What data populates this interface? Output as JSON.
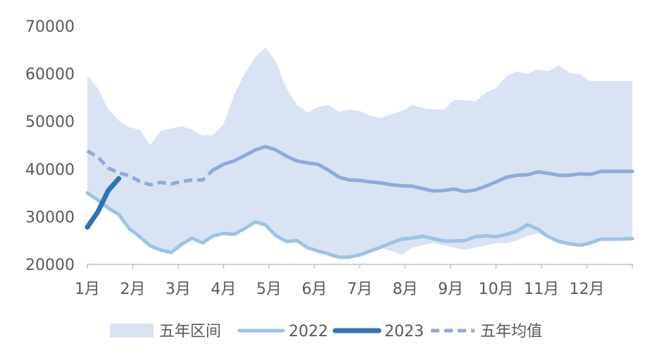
{
  "chart_data": {
    "type": "line",
    "title": "",
    "xlabel": "",
    "ylabel": "",
    "ylim": [
      20000,
      70000
    ],
    "yticks": [
      20000,
      30000,
      40000,
      50000,
      60000,
      70000
    ],
    "ytick_labels": [
      "20000",
      "30000",
      "40000",
      "50000",
      "60000",
      "70000"
    ],
    "month_labels": [
      "1月",
      "2月",
      "3月",
      "4月",
      "5月",
      "6月",
      "7月",
      "8月",
      "9月",
      "10月",
      "11月",
      "12月"
    ],
    "x_unit": "week",
    "x_max": 53,
    "legend_position": "bottom",
    "colors": {
      "band": "#dae3f3",
      "s2022": "#9dc3e6",
      "s2023": "#2e75b6",
      "avg": "#8faadc",
      "axis": "#bfbfbf",
      "text": "#595959"
    },
    "legend": [
      "五年区间",
      "2022",
      "2023",
      "五年均值"
    ],
    "series": [
      {
        "name": "五年区间",
        "kind": "band",
        "upper": [
          59500,
          57000,
          52500,
          50200,
          48800,
          48200,
          45000,
          48000,
          48500,
          49000,
          48300,
          47000,
          47200,
          49500,
          55500,
          60000,
          63500,
          65500,
          62500,
          57000,
          53500,
          51800,
          53000,
          53500,
          52000,
          52500,
          52200,
          51200,
          50700,
          51500,
          52200,
          53500,
          52800,
          52500,
          52500,
          54500,
          54500,
          54200,
          56000,
          57000,
          59500,
          60500,
          60000,
          61000,
          60500,
          61800,
          60200,
          59800,
          58500,
          58500,
          58500,
          58500,
          58500
        ],
        "lower": [
          35000,
          33500,
          31800,
          30500,
          27500,
          25800,
          24000,
          23200,
          22500,
          24200,
          25500,
          24500,
          26000,
          26500,
          26300,
          27500,
          29000,
          28300,
          26000,
          25000,
          25000,
          23500,
          22800,
          22200,
          21500,
          21500,
          22000,
          22800,
          23500,
          22800,
          22000,
          23500,
          24000,
          24500,
          24000,
          23500,
          23000,
          23500,
          24000,
          24500,
          24500,
          25000,
          26000,
          26500,
          25500,
          24800,
          24300,
          24000,
          24500,
          25000,
          25000,
          25000,
          25000
        ]
      },
      {
        "name": "2022",
        "kind": "line",
        "values": [
          35000,
          33500,
          31800,
          30500,
          27500,
          25800,
          23900,
          23000,
          22500,
          24200,
          25500,
          24500,
          26000,
          26500,
          26300,
          27500,
          28900,
          28300,
          26000,
          24800,
          25000,
          23500,
          22800,
          22200,
          21500,
          21500,
          22000,
          22800,
          23600,
          24500,
          25300,
          25500,
          25900,
          25400,
          24900,
          24900,
          25000,
          25800,
          26000,
          25800,
          26300,
          27000,
          28300,
          27400,
          25800,
          24800,
          24300,
          24000,
          24500,
          25300,
          25300,
          25300,
          25400
        ]
      },
      {
        "name": "2023",
        "kind": "line",
        "values": [
          27800,
          31000,
          35500,
          38000
        ]
      },
      {
        "name": "五年均值",
        "kind": "line-dashed-prefix",
        "values": [
          43800,
          42500,
          40200,
          39200,
          38600,
          37400,
          36700,
          37200,
          36900,
          37400,
          37700,
          37700,
          39800,
          41000,
          41700,
          42800,
          44000,
          44700,
          44000,
          42700,
          41700,
          41300,
          41000,
          39800,
          38300,
          37700,
          37600,
          37300,
          37100,
          36700,
          36500,
          36400,
          35900,
          35400,
          35500,
          35800,
          35300,
          35600,
          36400,
          37300,
          38300,
          38700,
          38800,
          39400,
          39100,
          38700,
          38700,
          39000,
          38900,
          39500,
          39500,
          39500,
          39500
        ],
        "dashed_until_index": 12
      }
    ]
  }
}
